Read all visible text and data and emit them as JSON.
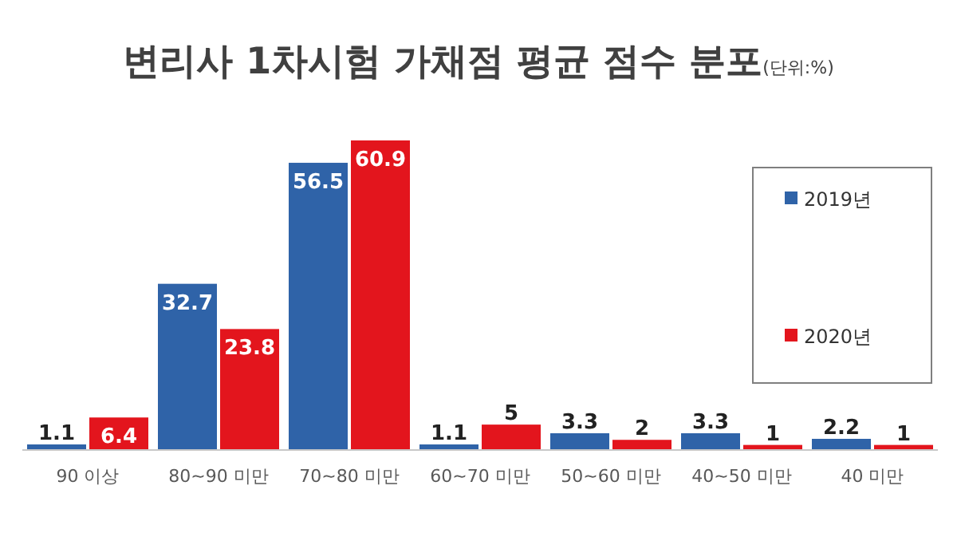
{
  "chart_data": {
    "type": "bar",
    "title": "변리사 1차시험 가채점 평균 점수 분포",
    "subtitle": "(단위:%)",
    "categories": [
      "90 이상",
      "80~90 미만",
      "70~80 미만",
      "60~70 미만",
      "50~60 미만",
      "40~50 미만",
      "40 미만"
    ],
    "series": [
      {
        "name": "2019년",
        "color": "#2f63a8",
        "values": [
          1.1,
          32.7,
          56.5,
          1.1,
          3.3,
          3.3,
          2.2
        ]
      },
      {
        "name": "2020년",
        "color": "#e3151d",
        "values": [
          6.4,
          23.8,
          60.9,
          5,
          2,
          1,
          1
        ]
      }
    ],
    "data_labels": true,
    "legend": "right"
  }
}
